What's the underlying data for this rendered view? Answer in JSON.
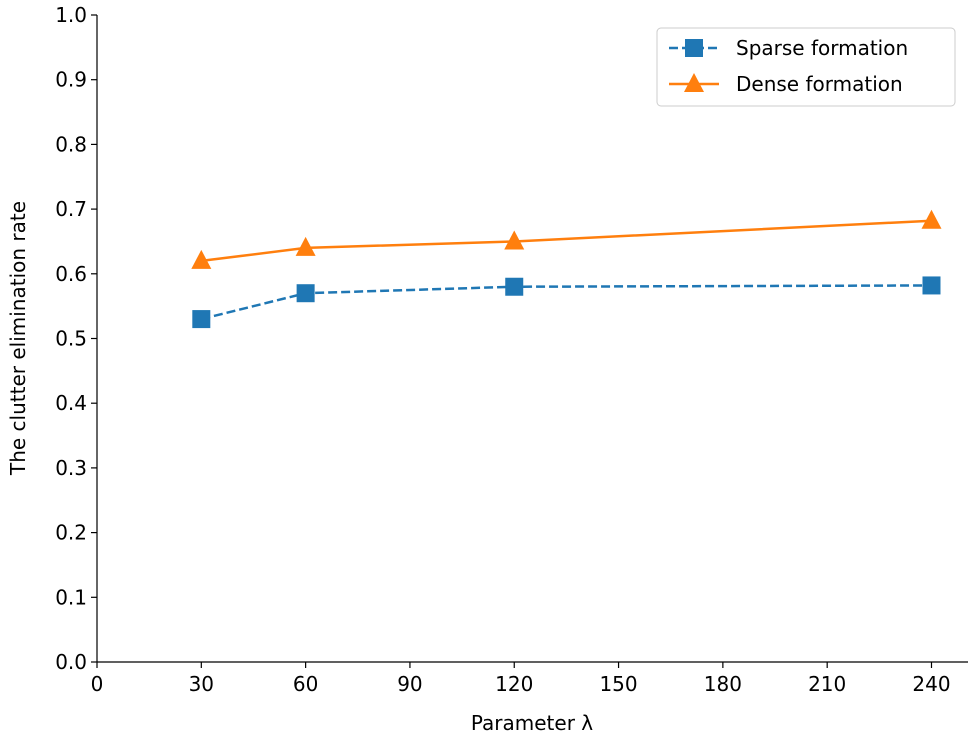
{
  "chart_data": {
    "type": "line",
    "x_label": "Parameter λ",
    "y_label": "The clutter elimination rate",
    "x": [
      30,
      60,
      120,
      240
    ],
    "series": [
      {
        "name": "Sparse formation",
        "color": "#1f77b4",
        "marker": "square",
        "linestyle": "dashed",
        "values": [
          0.53,
          0.57,
          0.58,
          0.582
        ]
      },
      {
        "name": "Dense formation",
        "color": "#ff7f0e",
        "marker": "triangle",
        "linestyle": "solid",
        "values": [
          0.62,
          0.64,
          0.65,
          0.682
        ]
      }
    ],
    "xlim": [
      0,
      250.5
    ],
    "xticks": [
      0,
      30,
      60,
      90,
      120,
      150,
      180,
      210,
      240
    ],
    "ylim": [
      0,
      1
    ],
    "yticks": [
      {
        "value": 0,
        "label": "0.0"
      },
      0.1,
      0.2,
      0.3,
      0.4,
      0.5,
      0.6,
      0.7,
      0.8,
      0.9,
      {
        "value": 1,
        "label": "1.0"
      }
    ],
    "legend": "upper right",
    "grid": false
  }
}
